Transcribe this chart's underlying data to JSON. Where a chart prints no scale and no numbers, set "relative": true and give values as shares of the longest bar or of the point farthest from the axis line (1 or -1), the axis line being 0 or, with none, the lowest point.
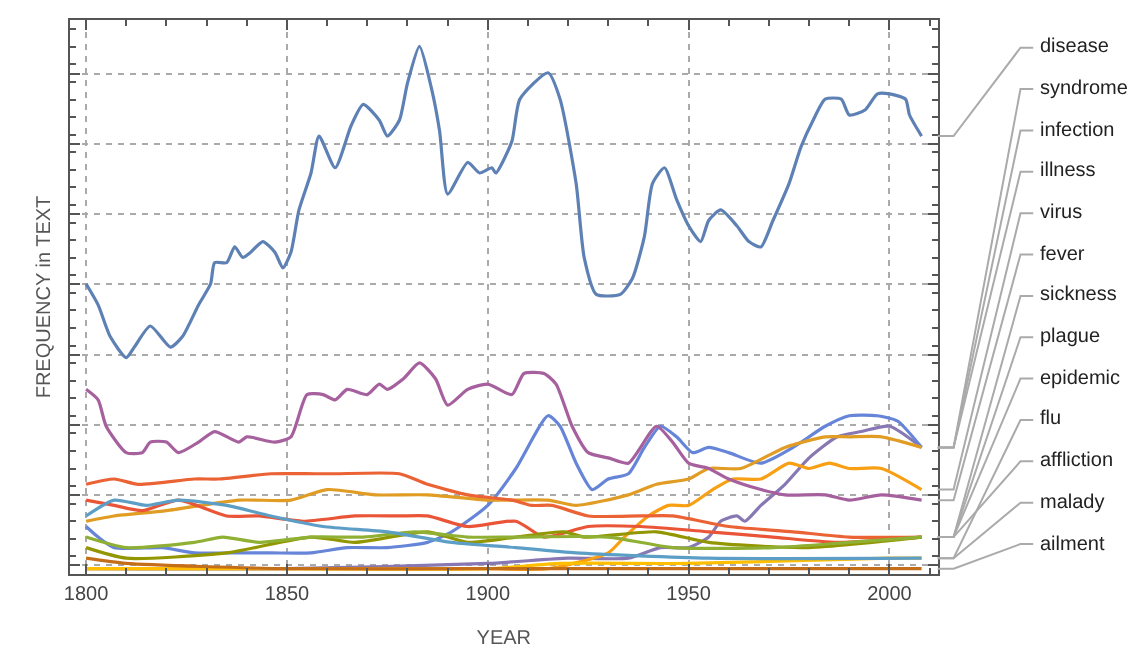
{
  "chart_data": {
    "type": "line",
    "relative": true,
    "xlabel": "YEAR",
    "ylabel": "FREQUENCY in TEXT",
    "xlim": [
      1796,
      2012
    ],
    "xticks": [
      1800,
      1850,
      1900,
      1950,
      2000
    ],
    "grid": true,
    "line_style": "solid",
    "marker": "none",
    "series": [
      {
        "name": "disease",
        "color": "#5e81b5",
        "x": [
          1800,
          1803,
          1806,
          1810,
          1812,
          1816,
          1821,
          1824,
          1828,
          1831,
          1832,
          1835,
          1837,
          1839,
          1841,
          1844,
          1847,
          1849,
          1851,
          1853,
          1856,
          1858,
          1862,
          1866,
          1869,
          1873,
          1875,
          1878,
          1880,
          1883,
          1886,
          1888,
          1890,
          1895,
          1898,
          1901,
          1902,
          1906,
          1908,
          1915,
          1918,
          1922,
          1924,
          1927,
          1933,
          1936,
          1939,
          1941,
          1944,
          1947,
          1950,
          1953,
          1955,
          1958,
          1962,
          1965,
          1968,
          1971,
          1975,
          1978,
          1981,
          1984,
          1988,
          1990,
          1994,
          1997,
          2000,
          2004,
          2005,
          2008
        ],
        "values": [
          0.55,
          0.51,
          0.45,
          0.41,
          0.43,
          0.47,
          0.43,
          0.45,
          0.51,
          0.55,
          0.59,
          0.59,
          0.62,
          0.6,
          0.61,
          0.63,
          0.61,
          0.58,
          0.61,
          0.69,
          0.76,
          0.83,
          0.77,
          0.85,
          0.89,
          0.86,
          0.83,
          0.86,
          0.93,
          1.0,
          0.92,
          0.84,
          0.72,
          0.78,
          0.76,
          0.77,
          0.76,
          0.82,
          0.9,
          0.95,
          0.9,
          0.74,
          0.6,
          0.53,
          0.53,
          0.56,
          0.64,
          0.74,
          0.77,
          0.71,
          0.66,
          0.63,
          0.67,
          0.69,
          0.66,
          0.63,
          0.62,
          0.67,
          0.74,
          0.81,
          0.86,
          0.9,
          0.9,
          0.87,
          0.88,
          0.91,
          0.91,
          0.9,
          0.87,
          0.83
        ]
      },
      {
        "name": "syndrome",
        "color": "#8778b3",
        "x": [
          1800,
          1850,
          1900,
          1920,
          1935,
          1943,
          1950,
          1955,
          1958,
          1962,
          1964,
          1968,
          1974,
          1980,
          1987,
          1993,
          2000,
          2008
        ],
        "values": [
          0.01,
          0.01,
          0.02,
          0.03,
          0.03,
          0.05,
          0.05,
          0.07,
          0.1,
          0.11,
          0.1,
          0.13,
          0.17,
          0.22,
          0.26,
          0.27,
          0.28,
          0.24
        ]
      },
      {
        "name": "infection",
        "color": "#6685d9",
        "x": [
          1800,
          1803,
          1807,
          1819,
          1827,
          1837,
          1846,
          1856,
          1865,
          1875,
          1885,
          1891,
          1900,
          1907,
          1915,
          1918,
          1922,
          1926,
          1930,
          1935,
          1939,
          1943,
          1947,
          1951,
          1955,
          1960,
          1968,
          1976,
          1984,
          1990,
          1997,
          2002,
          2008
        ],
        "values": [
          0.09,
          0.07,
          0.05,
          0.05,
          0.04,
          0.04,
          0.04,
          0.04,
          0.05,
          0.05,
          0.06,
          0.08,
          0.13,
          0.2,
          0.3,
          0.28,
          0.21,
          0.16,
          0.18,
          0.19,
          0.24,
          0.28,
          0.26,
          0.23,
          0.24,
          0.23,
          0.21,
          0.24,
          0.28,
          0.3,
          0.3,
          0.29,
          0.24
        ]
      },
      {
        "name": "illness",
        "color": "#e19c24",
        "x": [
          1800,
          1807,
          1820,
          1838,
          1851,
          1860,
          1872,
          1885,
          1900,
          1915,
          1922,
          1935,
          1942,
          1950,
          1955,
          1963,
          1974,
          1984,
          1990,
          1998,
          2008
        ],
        "values": [
          0.1,
          0.11,
          0.12,
          0.14,
          0.14,
          0.16,
          0.15,
          0.15,
          0.14,
          0.14,
          0.13,
          0.15,
          0.17,
          0.18,
          0.2,
          0.2,
          0.24,
          0.26,
          0.26,
          0.26,
          0.24
        ]
      },
      {
        "name": "virus",
        "color": "#f89f13",
        "x": [
          1800,
          1900,
          1915,
          1930,
          1934,
          1940,
          1945,
          1950,
          1956,
          1961,
          1968,
          1975,
          1980,
          1985,
          1990,
          1998,
          2008
        ],
        "values": [
          0.01,
          0.01,
          0.01,
          0.04,
          0.07,
          0.11,
          0.13,
          0.13,
          0.16,
          0.18,
          0.18,
          0.21,
          0.2,
          0.21,
          0.2,
          0.2,
          0.16
        ]
      },
      {
        "name": "fever",
        "color": "#a5609d",
        "x": [
          1800,
          1803,
          1805,
          1810,
          1814,
          1816,
          1820,
          1823,
          1828,
          1832,
          1838,
          1840,
          1847,
          1851,
          1855,
          1859,
          1862,
          1865,
          1870,
          1873,
          1875,
          1879,
          1883,
          1887,
          1890,
          1895,
          1900,
          1906,
          1909,
          1914,
          1917,
          1921,
          1925,
          1930,
          1935,
          1942,
          1946,
          1950,
          1955,
          1960,
          1968,
          1974,
          1984,
          1990,
          1998,
          2008
        ],
        "values": [
          0.35,
          0.33,
          0.28,
          0.23,
          0.23,
          0.25,
          0.25,
          0.23,
          0.25,
          0.27,
          0.25,
          0.26,
          0.25,
          0.26,
          0.34,
          0.34,
          0.33,
          0.35,
          0.34,
          0.36,
          0.35,
          0.37,
          0.4,
          0.37,
          0.32,
          0.35,
          0.36,
          0.34,
          0.38,
          0.38,
          0.36,
          0.28,
          0.23,
          0.22,
          0.21,
          0.28,
          0.25,
          0.21,
          0.2,
          0.18,
          0.16,
          0.15,
          0.15,
          0.14,
          0.15,
          0.14
        ]
      },
      {
        "name": "sickness",
        "color": "#eb6235",
        "x": [
          1800,
          1807,
          1813,
          1827,
          1833,
          1846,
          1857,
          1862,
          1878,
          1885,
          1895,
          1906,
          1911,
          1916,
          1925,
          1938,
          1946,
          1960,
          1976,
          1990,
          2008
        ],
        "values": [
          0.17,
          0.18,
          0.17,
          0.18,
          0.18,
          0.19,
          0.19,
          0.19,
          0.19,
          0.17,
          0.15,
          0.14,
          0.13,
          0.13,
          0.11,
          0.11,
          0.11,
          0.09,
          0.08,
          0.07,
          0.07
        ]
      },
      {
        "name": "plague",
        "color": "#e95536",
        "x": [
          1800,
          1807,
          1814,
          1823,
          1835,
          1843,
          1854,
          1867,
          1878,
          1885,
          1895,
          1907,
          1914,
          1925,
          1938,
          1955,
          1971,
          1987,
          2008
        ],
        "values": [
          0.14,
          0.13,
          0.12,
          0.14,
          0.11,
          0.11,
          0.1,
          0.11,
          0.11,
          0.11,
          0.09,
          0.1,
          0.07,
          0.09,
          0.09,
          0.08,
          0.07,
          0.06,
          0.07
        ]
      },
      {
        "name": "epidemic",
        "color": "#929600",
        "x": [
          1800,
          1810,
          1835,
          1856,
          1867,
          1885,
          1895,
          1907,
          1919,
          1924,
          1942,
          1955,
          1979,
          2008
        ],
        "values": [
          0.05,
          0.03,
          0.04,
          0.07,
          0.06,
          0.08,
          0.06,
          0.07,
          0.08,
          0.07,
          0.08,
          0.06,
          0.05,
          0.07
        ]
      },
      {
        "name": "flu",
        "color": "#ffbf00",
        "x": [
          1800,
          1850,
          1900,
          1918,
          1950,
          2000,
          2008
        ],
        "values": [
          0.01,
          0.01,
          0.01,
          0.02,
          0.02,
          0.03,
          0.03
        ]
      },
      {
        "name": "affliction",
        "color": "#8fb032",
        "x": [
          1800,
          1810,
          1827,
          1834,
          1843,
          1856,
          1869,
          1882,
          1895,
          1907,
          1930,
          1946,
          1971,
          1990,
          2008
        ],
        "values": [
          0.07,
          0.05,
          0.06,
          0.07,
          0.06,
          0.07,
          0.07,
          0.08,
          0.07,
          0.07,
          0.07,
          0.05,
          0.05,
          0.06,
          0.07
        ]
      },
      {
        "name": "malady",
        "color": "#5d9ec7",
        "x": [
          1800,
          1807,
          1815,
          1823,
          1835,
          1846,
          1859,
          1875,
          1891,
          1907,
          1922,
          1955,
          2008
        ],
        "values": [
          0.11,
          0.14,
          0.13,
          0.14,
          0.13,
          0.11,
          0.09,
          0.08,
          0.06,
          0.05,
          0.04,
          0.03,
          0.03
        ]
      },
      {
        "name": "ailment",
        "color": "#c56e1a",
        "x": [
          1800,
          1810,
          1850,
          1900,
          2008
        ],
        "values": [
          0.03,
          0.02,
          0.01,
          0.01,
          0.01
        ]
      }
    ]
  }
}
